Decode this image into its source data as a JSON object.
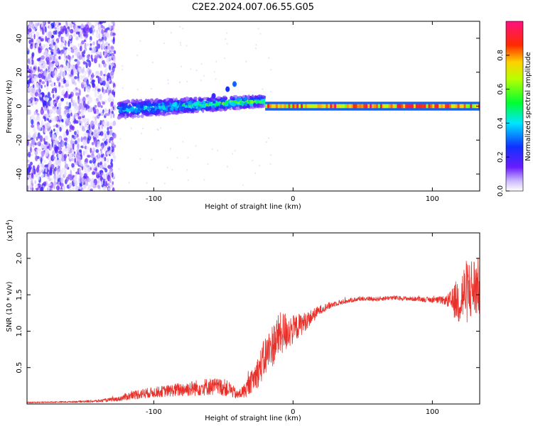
{
  "title": "C2E2.2024.007.06.55.G05",
  "colors": {
    "snr_line": "#e8302a",
    "spectrogram_strong": "#e8302a",
    "spectrogram_mid": "#22d060",
    "spectrogram_weak": "#5a1cff",
    "spectrogram_faint": "#b79cff"
  },
  "chart_data": [
    {
      "type": "heatmap",
      "title": "C2E2.2024.007.06.55.G05",
      "xlabel": "Height of straight line (km)",
      "ylabel": "Frequency (Hz)",
      "colorbar_label": "Normalized spectral amplitude",
      "xlim": [
        -191,
        134
      ],
      "ylim": [
        -50,
        50
      ],
      "xticks": [
        -100,
        0,
        100
      ],
      "yticks": [
        -40,
        -20,
        0,
        20,
        40
      ],
      "colorbar_range": [
        0,
        1
      ],
      "colorbar_ticks": [
        0.0,
        0.2,
        0.4,
        0.6,
        0.8
      ],
      "colormap": "rainbow (white/purple → blue → cyan → green → yellow → red → magenta)",
      "features": [
        {
          "description": "broadband scattered noise",
          "x_range": [
            -191,
            -128
          ],
          "freq_range": [
            -50,
            50
          ],
          "amplitude": 0.05
        },
        {
          "description": "spreading central signal",
          "x_range": [
            -125,
            -20
          ],
          "freq_center": [
            -2,
            3
          ],
          "freq_halfwidth": [
            5,
            3
          ],
          "amplitude": 0.4
        },
        {
          "description": "narrow strong carrier",
          "x_range": [
            -20,
            134
          ],
          "freq_center": 0,
          "freq_halfwidth": 1,
          "amplitude": 0.95
        }
      ]
    },
    {
      "type": "line",
      "xlabel": "Height of straight line (km)",
      "ylabel": "SNR (10 * v/v)",
      "y_multiplier": "(x10^4)",
      "xlim": [
        -191,
        134
      ],
      "ylim": [
        0,
        2.35
      ],
      "xticks": [
        -100,
        0,
        100
      ],
      "yticks": [
        0.5,
        1.0,
        1.5,
        2.0
      ],
      "grid": false,
      "series": [
        {
          "values_note": "SNR in units of 10^4, noisy trace",
          "x": [
            -191,
            -160,
            -140,
            -125,
            -120,
            -110,
            -100,
            -90,
            -80,
            -70,
            -60,
            -50,
            -45,
            -40,
            -35,
            -30,
            -25,
            -20,
            -15,
            -10,
            -5,
            0,
            10,
            20,
            30,
            40,
            50,
            60,
            70,
            80,
            90,
            100,
            110,
            115,
            120,
            125,
            130,
            134
          ],
          "y": [
            0.02,
            0.03,
            0.04,
            0.07,
            0.1,
            0.14,
            0.16,
            0.18,
            0.2,
            0.22,
            0.24,
            0.23,
            0.2,
            0.12,
            0.18,
            0.3,
            0.45,
            0.65,
            0.8,
            0.95,
            1.0,
            1.02,
            1.15,
            1.3,
            1.38,
            1.42,
            1.45,
            1.44,
            1.46,
            1.45,
            1.44,
            1.43,
            1.42,
            1.4,
            1.45,
            1.55,
            1.6,
            1.6
          ],
          "noise_amplitude": [
            0.01,
            0.01,
            0.02,
            0.03,
            0.05,
            0.07,
            0.07,
            0.08,
            0.1,
            0.11,
            0.12,
            0.12,
            0.1,
            0.06,
            0.1,
            0.15,
            0.22,
            0.28,
            0.3,
            0.3,
            0.28,
            0.2,
            0.12,
            0.06,
            0.04,
            0.03,
            0.03,
            0.03,
            0.03,
            0.03,
            0.03,
            0.04,
            0.06,
            0.2,
            0.4,
            0.45,
            0.45,
            0.4
          ]
        }
      ]
    }
  ]
}
